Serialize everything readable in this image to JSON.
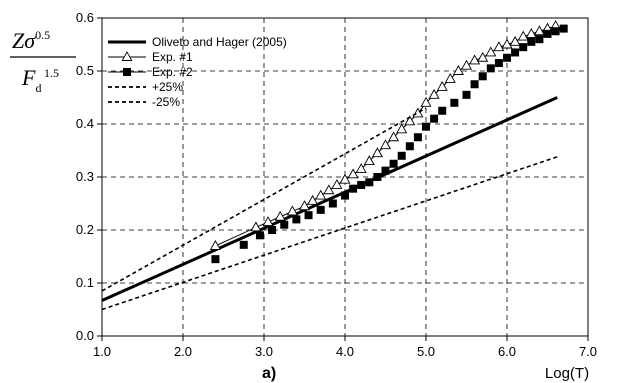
{
  "chart_data": {
    "type": "line",
    "panel_label": "a)",
    "xlabel": "Log(T)",
    "ylabel": {
      "numerator": "Zσ",
      "numerator_exp": "0.5",
      "denominator": "F",
      "denominator_sub": "d",
      "denominator_exp": "1.5"
    },
    "xlim": [
      1.0,
      7.0
    ],
    "ylim": [
      0.0,
      0.6
    ],
    "xticks": [
      "1.0",
      "2.0",
      "3.0",
      "4.0",
      "5.0",
      "6.0",
      "7.0"
    ],
    "yticks": [
      "0.0",
      "0.1",
      "0.2",
      "0.3",
      "0.4",
      "0.5",
      "0.6"
    ],
    "grid": "dashed",
    "legend_position": "top-left",
    "series": [
      {
        "name": "Oliveto and Hager (2005)",
        "style": "solid-thick",
        "x": [
          1.0,
          6.62
        ],
        "y": [
          0.067,
          0.45
        ]
      },
      {
        "name": "Exp. #1",
        "style": "open-triangle",
        "x": [
          2.4,
          2.9,
          3.05,
          3.2,
          3.35,
          3.5,
          3.6,
          3.7,
          3.8,
          3.9,
          4.0,
          4.1,
          4.2,
          4.3,
          4.4,
          4.5,
          4.6,
          4.7,
          4.8,
          4.9,
          5.0,
          5.1,
          5.2,
          5.3,
          5.4,
          5.5,
          5.6,
          5.7,
          5.8,
          5.9,
          6.0,
          6.1,
          6.2,
          6.3,
          6.4,
          6.5,
          6.6
        ],
        "y": [
          0.17,
          0.205,
          0.215,
          0.225,
          0.235,
          0.245,
          0.255,
          0.265,
          0.275,
          0.285,
          0.295,
          0.305,
          0.315,
          0.33,
          0.345,
          0.36,
          0.375,
          0.39,
          0.405,
          0.42,
          0.44,
          0.455,
          0.47,
          0.485,
          0.5,
          0.51,
          0.52,
          0.525,
          0.535,
          0.545,
          0.55,
          0.555,
          0.565,
          0.57,
          0.575,
          0.58,
          0.585
        ]
      },
      {
        "name": "Exp. #2",
        "style": "filled-square",
        "x": [
          2.4,
          2.75,
          2.95,
          3.1,
          3.25,
          3.4,
          3.55,
          3.7,
          3.85,
          4.0,
          4.1,
          4.2,
          4.3,
          4.4,
          4.5,
          4.6,
          4.7,
          4.8,
          4.9,
          5.0,
          5.1,
          5.2,
          5.35,
          5.5,
          5.6,
          5.7,
          5.8,
          5.9,
          6.0,
          6.1,
          6.2,
          6.3,
          6.4,
          6.5,
          6.6,
          6.7
        ],
        "y": [
          0.145,
          0.172,
          0.19,
          0.2,
          0.21,
          0.22,
          0.228,
          0.238,
          0.25,
          0.265,
          0.278,
          0.285,
          0.29,
          0.3,
          0.312,
          0.325,
          0.34,
          0.358,
          0.375,
          0.395,
          0.41,
          0.425,
          0.44,
          0.455,
          0.475,
          0.49,
          0.505,
          0.515,
          0.525,
          0.535,
          0.545,
          0.555,
          0.56,
          0.57,
          0.575,
          0.58
        ]
      },
      {
        "name": "+25%",
        "style": "dashed",
        "x": [
          1.0,
          5.0
        ],
        "y": [
          0.085,
          0.43
        ]
      },
      {
        "name": "-25%",
        "style": "dashed",
        "x": [
          1.0,
          6.62
        ],
        "y": [
          0.05,
          0.338
        ]
      }
    ]
  }
}
